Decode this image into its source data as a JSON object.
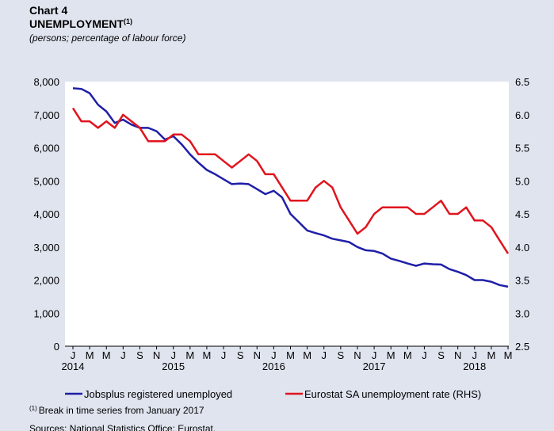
{
  "chart_data": {
    "type": "line",
    "title": "Chart 4",
    "subtitle": "UNEMPLOYMENT",
    "subtitle_superscript": "(1)",
    "units_note": "(persons; percentage of labour force)",
    "categories": [
      "J",
      null,
      "M",
      null,
      "M",
      null,
      "J",
      null,
      "S",
      null,
      "N",
      null,
      "J",
      null,
      "M",
      null,
      "M",
      null,
      "J",
      null,
      "S",
      null,
      "N",
      null,
      "J",
      null,
      "M",
      null,
      "M",
      null,
      "J",
      null,
      "S",
      null,
      "N",
      null,
      "J",
      null,
      "M",
      null,
      "M",
      null,
      "J",
      null,
      "S",
      null,
      "N",
      null,
      "J",
      null,
      "M",
      null,
      "M"
    ],
    "year_labels": [
      "2014",
      null,
      null,
      null,
      null,
      null,
      null,
      null,
      null,
      null,
      null,
      null,
      "2015",
      null,
      null,
      null,
      null,
      null,
      null,
      null,
      null,
      null,
      null,
      null,
      "2016",
      null,
      null,
      null,
      null,
      null,
      null,
      null,
      null,
      null,
      null,
      null,
      "2017",
      null,
      null,
      null,
      null,
      null,
      null,
      null,
      null,
      null,
      null,
      null,
      "2018",
      null,
      null,
      null,
      null
    ],
    "series": [
      {
        "name": "Jobsplus registered unemployed",
        "color": "#1f1fa8",
        "axis": "y",
        "values": [
          7800,
          7780,
          7650,
          7300,
          7100,
          6750,
          6850,
          6700,
          6600,
          6600,
          6500,
          6250,
          6350,
          6100,
          5800,
          5550,
          5330,
          5200,
          5050,
          4900,
          4920,
          4900,
          4750,
          4600,
          4700,
          4500,
          4000,
          3750,
          3500,
          3420,
          3350,
          3250,
          3200,
          3150,
          3000,
          2900,
          2880,
          2800,
          2650,
          2580,
          2500,
          2430,
          2500,
          2480,
          2470,
          2330,
          2250,
          2150,
          2000,
          2000,
          1950,
          1850,
          1800
        ]
      },
      {
        "name": "Eurostat SA unemployment rate (RHS)",
        "color": "#e0141e",
        "axis": "y2",
        "values": [
          6.1,
          5.9,
          5.9,
          5.8,
          5.9,
          5.8,
          6.0,
          5.9,
          5.8,
          5.6,
          5.6,
          5.6,
          5.7,
          5.7,
          5.6,
          5.4,
          5.4,
          5.4,
          5.3,
          5.2,
          5.3,
          5.4,
          5.3,
          5.1,
          5.1,
          4.9,
          4.7,
          4.7,
          4.7,
          4.9,
          5.0,
          4.9,
          4.6,
          4.4,
          4.2,
          4.3,
          4.5,
          4.6,
          4.6,
          4.6,
          4.6,
          4.5,
          4.5,
          4.6,
          4.7,
          4.5,
          4.5,
          4.6,
          4.4,
          4.4,
          4.3,
          4.1,
          3.9
        ]
      }
    ],
    "ylim": [
      0,
      8000
    ],
    "yticks": [
      0,
      {
        "value": 1000,
        "label": "1,000"
      },
      {
        "value": 2000,
        "label": "2,000"
      },
      {
        "value": 3000,
        "label": "3,000"
      },
      {
        "value": 4000,
        "label": "4,000"
      },
      {
        "value": 5000,
        "label": "5,000"
      },
      {
        "value": 6000,
        "label": "6,000"
      },
      {
        "value": 7000,
        "label": "7,000"
      },
      {
        "value": 8000,
        "label": "8,000"
      }
    ],
    "y2lim": [
      2.5,
      6.5
    ],
    "y2ticks": [
      2.5,
      {
        "value": 3,
        "label": "3.0"
      },
      3.5,
      {
        "value": 4,
        "label": "4.0"
      },
      4.5,
      {
        "value": 5,
        "label": "5.0"
      },
      5.5,
      {
        "value": 6,
        "label": "6.0"
      },
      6.5
    ],
    "footnote_marker": "(1)",
    "footnote": "Break in time series from January 2017",
    "source": "Sources: National Statistics Office; Eurostat."
  }
}
